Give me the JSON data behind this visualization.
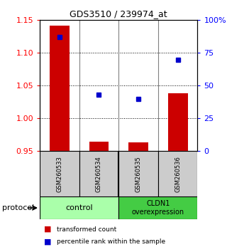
{
  "title": "GDS3510 / 239974_at",
  "samples": [
    "GSM260533",
    "GSM260534",
    "GSM260535",
    "GSM260536"
  ],
  "transformed_count": [
    1.142,
    0.965,
    0.963,
    1.038
  ],
  "percentile_rank": [
    87,
    43,
    40,
    70
  ],
  "bar_bottom": 0.95,
  "left_ylim": [
    0.95,
    1.15
  ],
  "right_ylim": [
    0,
    100
  ],
  "left_yticks": [
    0.95,
    1.0,
    1.05,
    1.1,
    1.15
  ],
  "right_yticks": [
    0,
    25,
    50,
    75,
    100
  ],
  "right_yticklabels": [
    "0",
    "25",
    "50",
    "75",
    "100%"
  ],
  "bar_color": "#cc0000",
  "dot_color": "#0000cc",
  "group1_label": "control",
  "group2_label": "CLDN1\noverexpression",
  "group1_color": "#aaffaa",
  "group2_color": "#44cc44",
  "protocol_label": "protocol",
  "legend_bar_label": "transformed count",
  "legend_dot_label": "percentile rank within the sample",
  "sample_bg_color": "#cccccc",
  "figsize": [
    3.2,
    3.54
  ],
  "dpi": 100
}
